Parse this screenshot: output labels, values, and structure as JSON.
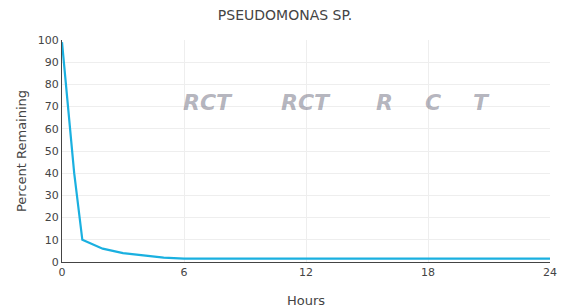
{
  "chart_data": {
    "type": "line",
    "title": "PSEUDOMONAS SP.",
    "xlabel": "Hours",
    "ylabel": "Percent Remaining",
    "x": [
      0,
      0.3,
      0.6,
      1.0,
      1.5,
      2.0,
      3.0,
      4.0,
      5.0,
      6.0,
      8.0,
      10.0,
      12.0,
      14.0,
      16.0,
      18.0,
      20.0,
      22.0,
      24.0
    ],
    "values": [
      99,
      70,
      40,
      10,
      8,
      6,
      4,
      3,
      2,
      1.5,
      1.5,
      1.5,
      1.5,
      1.5,
      1.5,
      1.5,
      1.5,
      1.5,
      1.5
    ],
    "color": "#1ab0e0",
    "xlim": [
      0,
      24
    ],
    "ylim": [
      0,
      100
    ],
    "xticks": [
      0,
      6,
      12,
      18,
      24
    ],
    "yticks": [
      0,
      10,
      20,
      30,
      40,
      50,
      60,
      70,
      80,
      90,
      100
    ],
    "grid": true,
    "annotations": [
      "RCT",
      "RCT",
      "R",
      "C",
      "T"
    ]
  }
}
